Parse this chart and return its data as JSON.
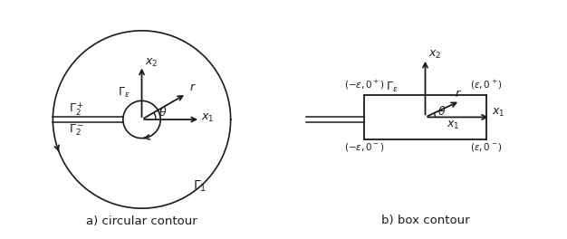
{
  "fig_width": 6.26,
  "fig_height": 2.64,
  "dpi": 100,
  "bg_color": "#ffffff",
  "line_color": "#1a1a1a",
  "text_color": "#1a1a1a",
  "caption": "a) circular contour",
  "caption2": "b) box contour",
  "caption_fontsize": 9.5,
  "label_fontsize": 9,
  "small_fontsize": 7.5
}
